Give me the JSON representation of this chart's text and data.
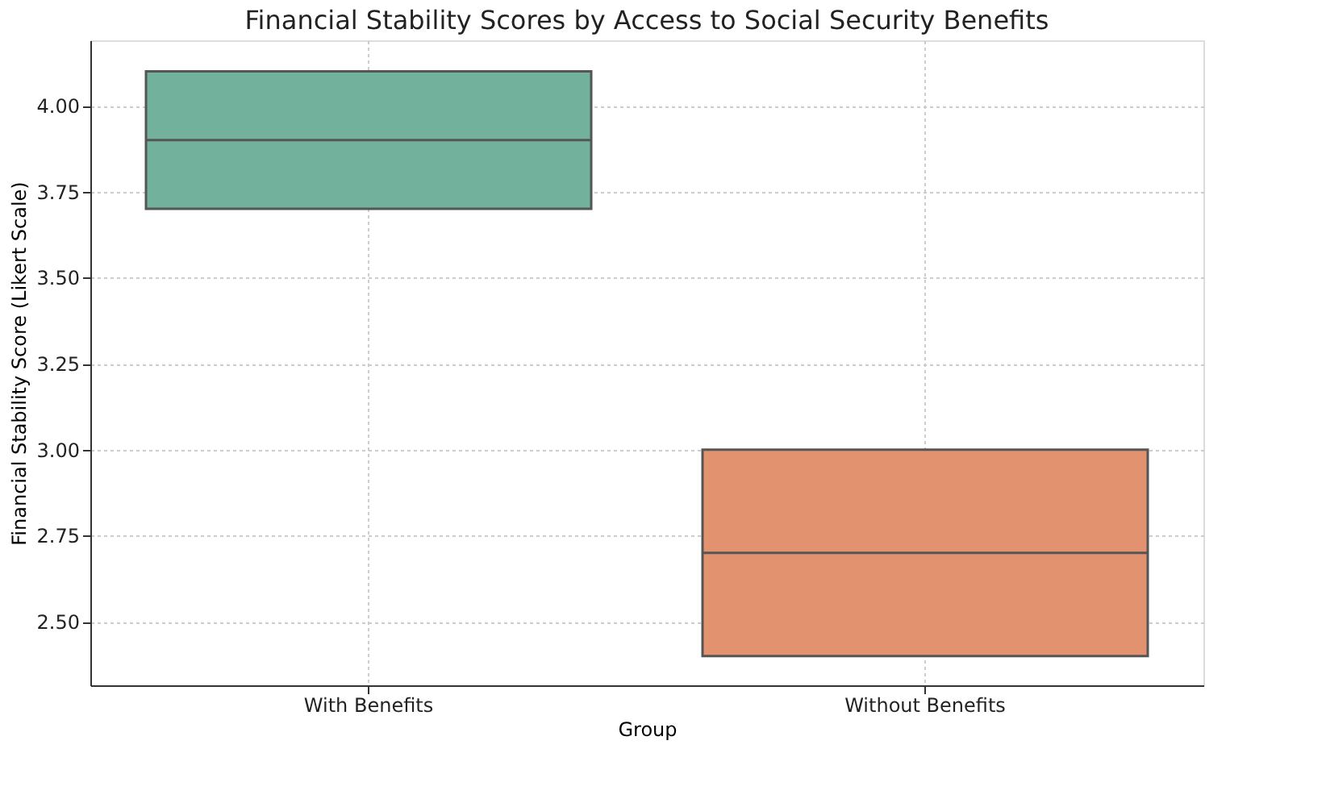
{
  "chart_data": {
    "type": "box",
    "title": "Financial Stability Scores by Access to Social Security Benefits",
    "xlabel": "Group",
    "ylabel": "Financial Stability Score (Likert Scale)",
    "categories": [
      "With Benefits",
      "Without Benefits"
    ],
    "colors": [
      "#72b29c",
      "#e39270"
    ],
    "boxes": [
      {
        "low": 3.7,
        "q1": 3.7,
        "median": 3.9,
        "q3": 4.1,
        "high": 4.1
      },
      {
        "low": 2.4,
        "q1": 2.4,
        "median": 2.7,
        "q3": 3.0,
        "high": 3.0
      }
    ],
    "ylim": [
      2.315,
      4.19
    ],
    "yticks": [
      {
        "value": 2.5,
        "label": "2.50"
      },
      {
        "value": 2.75,
        "label": "2.75"
      },
      {
        "value": 3.0,
        "label": "3.00"
      },
      {
        "value": 3.25,
        "label": "3.25"
      },
      {
        "value": 3.5,
        "label": "3.50"
      },
      {
        "value": 3.75,
        "label": "3.75"
      },
      {
        "value": 4.0,
        "label": "4.00"
      }
    ],
    "grid": true
  }
}
